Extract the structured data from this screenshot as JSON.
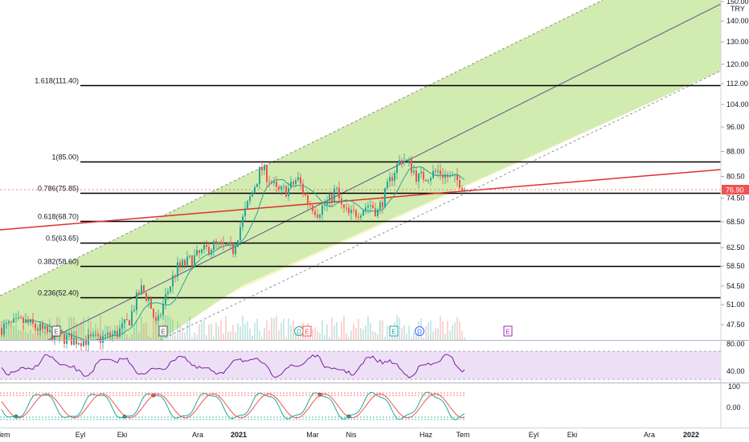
{
  "chart_data": {
    "type": "candlestick",
    "currency": "TRY",
    "last_price": "76.90",
    "price_axis_labels": [
      "150.00",
      "140.00",
      "130.00",
      "120.00",
      "112.00",
      "104.00",
      "96.00",
      "88.00",
      "80.50",
      "74.50",
      "68.50",
      "62.50",
      "58.50",
      "54.50",
      "51.00",
      "47.50"
    ],
    "fib_levels": [
      {
        "label": "1.618(111.40)",
        "value": 111.4
      },
      {
        "label": "1(85.00)",
        "value": 85.0
      },
      {
        "label": "0.786(75.85)",
        "value": 75.85
      },
      {
        "label": "0.618(68.70)",
        "value": 68.7
      },
      {
        "label": "0.5(63.65)",
        "value": 63.65
      },
      {
        "label": "0.382(58.60)",
        "value": 58.6
      },
      {
        "label": "0.236(52.40)",
        "value": 52.4
      }
    ],
    "time_axis_labels": [
      "Tem",
      "Eyl",
      "Eki",
      "Ara",
      "2021",
      "Mar",
      "Nis",
      "Haz",
      "Tem",
      "Eyl",
      "Eki",
      "Ara",
      "2022"
    ],
    "event_markers": [
      "E",
      "E",
      "D",
      "E",
      "E",
      "D",
      "E"
    ],
    "rsi_axis_labels": [
      "80.00",
      "40.00"
    ],
    "stoch_axis_labels": [
      "100",
      "0.00"
    ]
  },
  "colors": {
    "up": "#26a69a",
    "down": "#ef5350",
    "fib_line": "#000000",
    "trend_line": "#e03030",
    "channel_fill": "#c8e6a0",
    "channel_outer": "#f4f6c8",
    "rsi_line": "#7b1fa2",
    "rsi_band": "#ede0f5",
    "price_tag": "#ef5350"
  }
}
